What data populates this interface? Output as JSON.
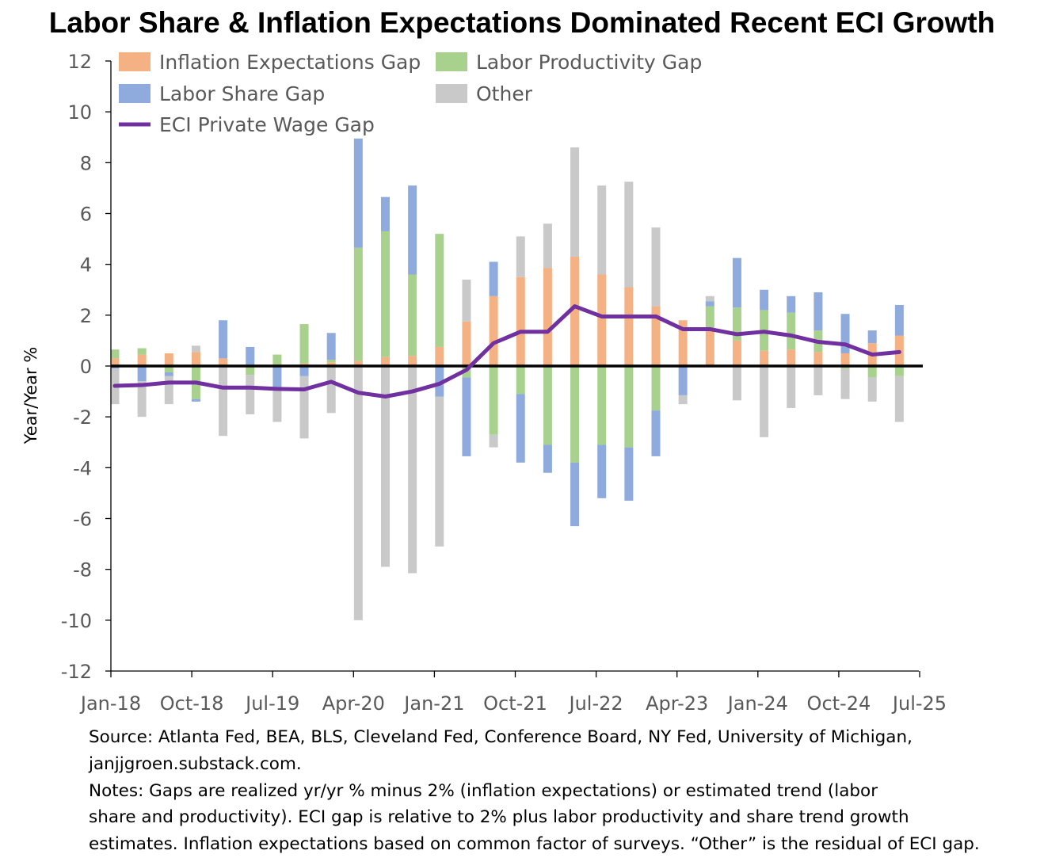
{
  "chart_data": {
    "type": "bar",
    "stacked": true,
    "title": "Labor Share & Inflation Expectations Dominated Recent ECI Growth",
    "ylabel": "Year/Year %",
    "xlabel": "",
    "ylim": [
      -12,
      12
    ],
    "ytick_step": 2,
    "yticks": [
      "12",
      "10",
      "8",
      "6",
      "4",
      "2",
      "0",
      "-2",
      "-4",
      "-6",
      "-8",
      "-10",
      "-12"
    ],
    "x_tick_labels": [
      "Jan-18",
      "Oct-18",
      "Jul-19",
      "Apr-20",
      "Jan-21",
      "Oct-21",
      "Jul-22",
      "Apr-23",
      "Jan-24",
      "Oct-24",
      "Jul-25"
    ],
    "periods": 31,
    "series": [
      {
        "name": "Inflation Expectations Gap",
        "key": "inflation",
        "color": "#F4B183",
        "values": [
          0.3,
          0.45,
          0.5,
          0.55,
          0.3,
          0.05,
          0.0,
          0.1,
          0.15,
          0.2,
          0.35,
          0.4,
          0.75,
          1.75,
          2.75,
          3.5,
          3.85,
          4.3,
          3.6,
          3.1,
          2.35,
          1.8,
          1.4,
          1.0,
          0.6,
          0.65,
          0.55,
          0.5,
          0.9,
          1.2,
          null
        ]
      },
      {
        "name": "Labor Productivity Gap",
        "key": "productivity",
        "color": "#A9D18E",
        "values": [
          0.35,
          0.25,
          -0.25,
          -1.3,
          -0.05,
          -0.35,
          0.45,
          1.55,
          0.1,
          4.45,
          4.95,
          3.2,
          4.45,
          -0.45,
          -2.7,
          -1.1,
          -3.1,
          -3.8,
          -3.1,
          -3.2,
          -1.75,
          0.0,
          0.95,
          1.3,
          1.6,
          1.45,
          0.85,
          -0.1,
          -0.45,
          -0.4,
          null
        ]
      },
      {
        "name": "Labor Share Gap",
        "key": "labor_share",
        "color": "#8FAADC",
        "values": [
          -0.1,
          -0.6,
          -0.15,
          -0.1,
          1.5,
          0.7,
          -0.85,
          -0.4,
          1.05,
          4.3,
          1.35,
          3.5,
          -1.2,
          -3.1,
          1.35,
          -2.7,
          -1.1,
          -2.5,
          -2.1,
          -2.1,
          -1.8,
          -1.15,
          0.2,
          1.95,
          0.8,
          0.65,
          1.5,
          1.55,
          0.5,
          1.2,
          null
        ]
      },
      {
        "name": "Other",
        "key": "other",
        "color": "#C9C9C9",
        "values": [
          -1.4,
          -1.4,
          -1.1,
          0.25,
          -2.7,
          -1.55,
          -1.35,
          -2.45,
          -1.85,
          -10.0,
          -7.9,
          -8.15,
          -5.9,
          1.65,
          -0.5,
          1.6,
          1.75,
          4.3,
          3.5,
          4.15,
          3.1,
          -0.35,
          0.2,
          -1.35,
          -2.8,
          -1.65,
          -1.15,
          -1.2,
          -0.95,
          -1.8,
          null
        ]
      }
    ],
    "line_series": {
      "name": "ECI Private Wage Gap",
      "color": "#7030A0",
      "values": [
        -0.78,
        -0.75,
        -0.65,
        -0.65,
        -0.85,
        -0.85,
        -0.9,
        -0.92,
        -0.62,
        -1.05,
        -1.2,
        -1.0,
        -0.7,
        -0.15,
        0.9,
        1.35,
        1.35,
        2.35,
        1.95,
        1.95,
        1.95,
        1.45,
        1.45,
        1.25,
        1.35,
        1.2,
        0.95,
        0.85,
        0.45,
        0.55,
        null
      ]
    },
    "legend": {
      "placement": "top-left",
      "columns": 2
    }
  },
  "footer": {
    "lines": [
      "Source: Atlanta Fed, BEA, BLS, Cleveland Fed, Conference Board, NY Fed, University of Michigan,",
      "janjjgroen.substack.com.",
      "Notes: Gaps are realized yr/yr % minus 2% (inflation expectations) or estimated trend (labor",
      "share and productivity). ECI gap is relative to 2% plus labor productivity and share trend growth",
      "estimates. Inflation expectations based on common factor of surveys. “Other” is the residual of ECI gap."
    ]
  }
}
